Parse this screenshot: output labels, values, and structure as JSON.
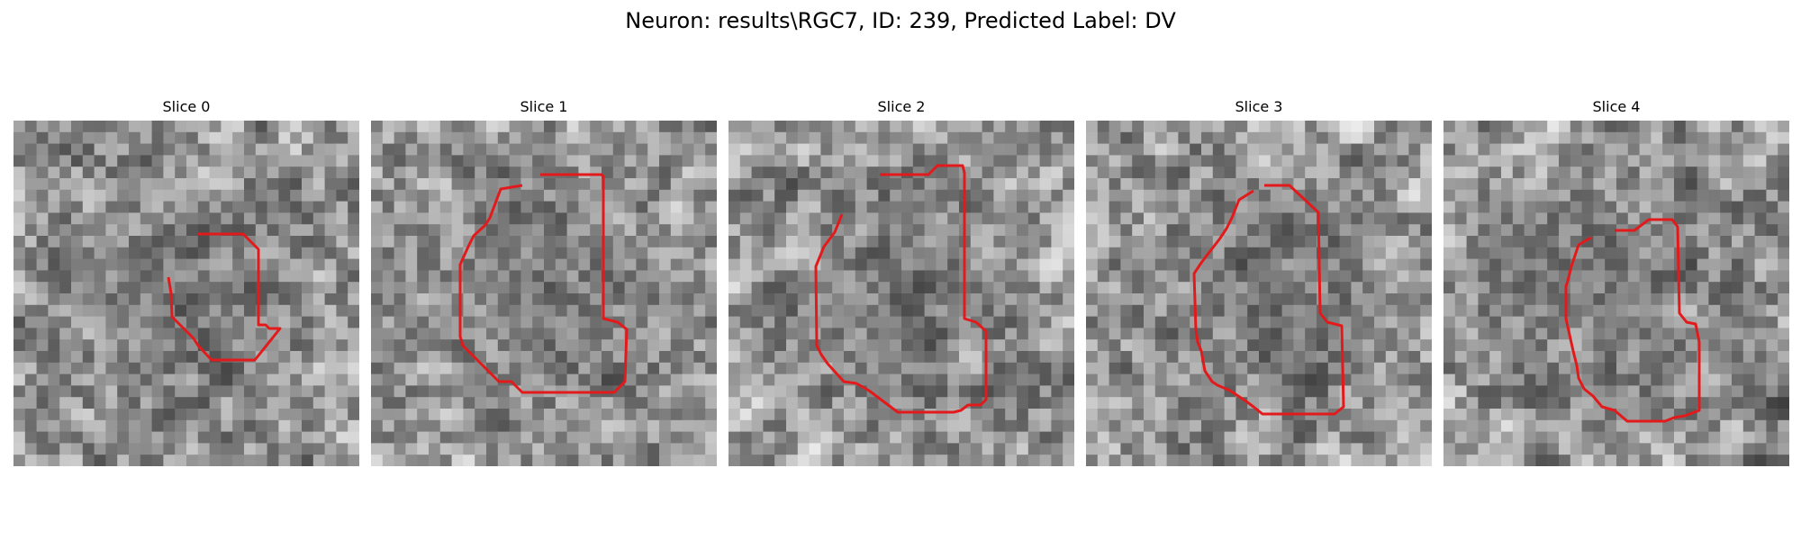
{
  "figure": {
    "title": "Neuron: results\\RGC7, ID: 239, Predicted Label: DV"
  },
  "contour_color": "#e31a1c",
  "image": {
    "description": "grayscale noisy pixel texture, ~30x30 grid per slice"
  },
  "slices": [
    {
      "title": "Slice 0"
    },
    {
      "title": "Slice 1"
    },
    {
      "title": "Slice 2"
    },
    {
      "title": "Slice 3"
    },
    {
      "title": "Slice 4"
    }
  ]
}
